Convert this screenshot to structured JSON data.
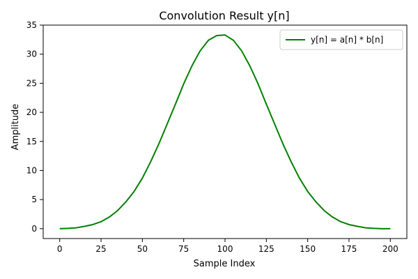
{
  "chart_data": {
    "type": "line",
    "title": "Convolution Result y[n]",
    "xlabel": "Sample Index",
    "ylabel": "Amplitude",
    "xlim": [
      -10,
      210
    ],
    "ylim": [
      -1.7,
      35
    ],
    "x_ticks": [
      0,
      25,
      50,
      75,
      100,
      125,
      150,
      175,
      200
    ],
    "y_ticks": [
      0,
      5,
      10,
      15,
      20,
      25,
      30,
      35
    ],
    "legend_position": "top-right",
    "grid": false,
    "series": [
      {
        "name": "y[n] = a[n] * b[n]",
        "color": "#008000",
        "x": [
          0,
          5,
          10,
          15,
          20,
          25,
          30,
          35,
          40,
          45,
          50,
          55,
          60,
          65,
          70,
          75,
          80,
          85,
          90,
          95,
          100,
          105,
          110,
          115,
          120,
          125,
          130,
          135,
          140,
          145,
          150,
          155,
          160,
          165,
          170,
          175,
          180,
          185,
          190,
          195,
          200
        ],
        "y": [
          0.0,
          0.05,
          0.15,
          0.4,
          0.7,
          1.2,
          2.0,
          3.1,
          4.6,
          6.4,
          8.7,
          11.5,
          14.6,
          18.0,
          21.4,
          24.9,
          28.0,
          30.6,
          32.4,
          33.2,
          33.3,
          32.4,
          30.6,
          28.0,
          24.9,
          21.4,
          18.0,
          14.6,
          11.5,
          8.7,
          6.4,
          4.6,
          3.1,
          2.0,
          1.2,
          0.7,
          0.4,
          0.15,
          0.05,
          0.0,
          0.0
        ]
      }
    ]
  }
}
